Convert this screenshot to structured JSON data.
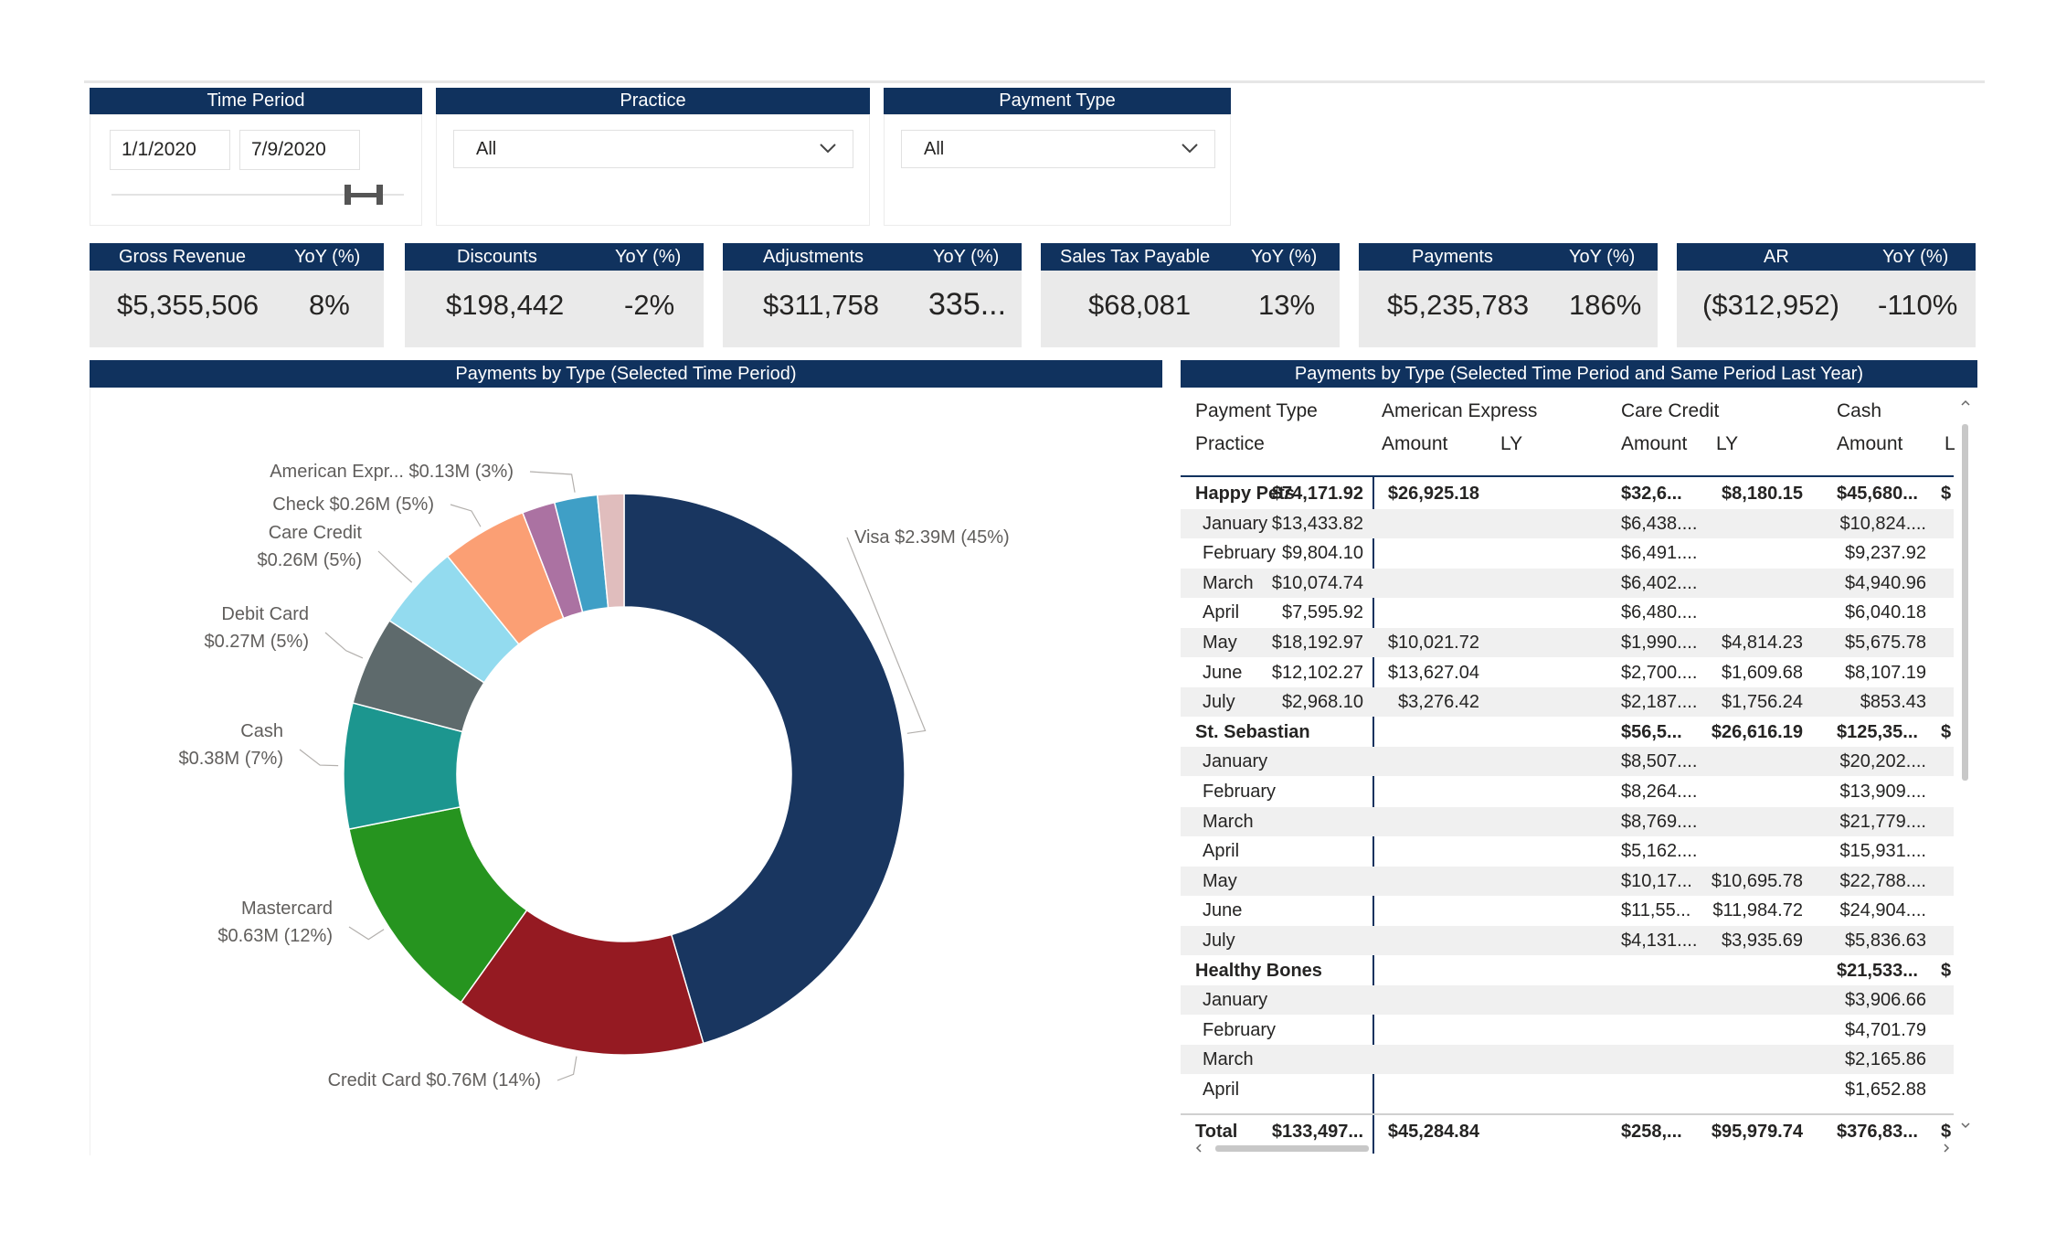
{
  "filters": {
    "time_period": {
      "title": "Time Period",
      "start": "1/1/2020",
      "end": "7/9/2020"
    },
    "practice": {
      "title": "Practice",
      "selected": "All"
    },
    "payment_type": {
      "title": "Payment Type",
      "selected": "All"
    }
  },
  "kpis": [
    {
      "label": "Gross Revenue",
      "yoy_label": "YoY (%)",
      "value": "$5,355,506",
      "yoy": "8%"
    },
    {
      "label": "Discounts",
      "yoy_label": "YoY (%)",
      "value": "$198,442",
      "yoy": "-2%"
    },
    {
      "label": "Adjustments",
      "yoy_label": "YoY (%)",
      "value": "$311,758",
      "yoy": "335..."
    },
    {
      "label": "Sales Tax Payable",
      "yoy_label": "YoY (%)",
      "value": "$68,081",
      "yoy": "13%"
    },
    {
      "label": "Payments",
      "yoy_label": "YoY (%)",
      "value": "$5,235,783",
      "yoy": "186%"
    },
    {
      "label": "AR",
      "yoy_label": "YoY (%)",
      "value": "($312,952)",
      "yoy": "-110%"
    }
  ],
  "chart_data": {
    "type": "pie",
    "title": "Payments by Type (Selected Time Period)",
    "donut": true,
    "slices": [
      {
        "name": "Visa",
        "value": 2.39,
        "label": "Visa $2.39M (45%)",
        "color": "#193660"
      },
      {
        "name": "Credit Card",
        "value": 0.76,
        "label": "Credit Card $0.76M (14%)",
        "color": "#951a22"
      },
      {
        "name": "Mastercard",
        "value": 0.63,
        "label_lines": [
          "Mastercard",
          "$0.63M (12%)"
        ],
        "color": "#26941f"
      },
      {
        "name": "Cash",
        "value": 0.38,
        "label_lines": [
          "Cash",
          "$0.38M (7%)"
        ],
        "color": "#1c968f"
      },
      {
        "name": "Debit Card",
        "value": 0.27,
        "label_lines": [
          "Debit Card",
          "$0.27M (5%)"
        ],
        "color": "#5e6a6c"
      },
      {
        "name": "Care Credit",
        "value": 0.26,
        "label_lines": [
          "Care Credit",
          "$0.26M (5%)"
        ],
        "color": "#93dbef"
      },
      {
        "name": "Check",
        "value": 0.26,
        "label": "Check $0.26M (5%)",
        "color": "#fb9f74"
      },
      {
        "name": "Other 1",
        "value": 0.1,
        "color": "#ab72a2"
      },
      {
        "name": "American Express",
        "value": 0.13,
        "label": "American Expr... $0.13M (3%)",
        "color": "#3f9fc6"
      },
      {
        "name": "Other 2",
        "value": 0.08,
        "color": "#e0bdbd"
      }
    ]
  },
  "table": {
    "title": "Payments by Type (Selected Time Period and Same Period Last Year)",
    "header1": [
      "Payment Type",
      "American Express",
      "Care Credit",
      "Cash"
    ],
    "header2": [
      "Practice",
      "Amount",
      "LY",
      "Amount",
      "LY",
      "Amount",
      "L"
    ],
    "rows": [
      {
        "label": "Happy Pets",
        "group": true,
        "cells": [
          "$74,171.92",
          "$26,925.18",
          "$32,6...",
          "$8,180.15",
          "$45,680...",
          "$"
        ]
      },
      {
        "label": "January",
        "cells": [
          "$13,433.82",
          "",
          "$6,438....",
          "",
          "$10,824....",
          ""
        ]
      },
      {
        "label": "February",
        "cells": [
          "$9,804.10",
          "",
          "$6,491....",
          "",
          "$9,237.92",
          ""
        ]
      },
      {
        "label": "March",
        "cells": [
          "$10,074.74",
          "",
          "$6,402....",
          "",
          "$4,940.96",
          ""
        ]
      },
      {
        "label": "April",
        "cells": [
          "$7,595.92",
          "",
          "$6,480....",
          "",
          "$6,040.18",
          ""
        ]
      },
      {
        "label": "May",
        "cells": [
          "$18,192.97",
          "$10,021.72",
          "$1,990....",
          "$4,814.23",
          "$5,675.78",
          ""
        ]
      },
      {
        "label": "June",
        "cells": [
          "$12,102.27",
          "$13,627.04",
          "$2,700....",
          "$1,609.68",
          "$8,107.19",
          ""
        ]
      },
      {
        "label": "July",
        "cells": [
          "$2,968.10",
          "$3,276.42",
          "$2,187....",
          "$1,756.24",
          "$853.43",
          ""
        ]
      },
      {
        "label": "St. Sebastian",
        "group": true,
        "cells": [
          "",
          "",
          "$56,5...",
          "$26,616.19",
          "$125,35...",
          "$"
        ]
      },
      {
        "label": "January",
        "cells": [
          "",
          "",
          "$8,507....",
          "",
          "$20,202....",
          ""
        ]
      },
      {
        "label": "February",
        "cells": [
          "",
          "",
          "$8,264....",
          "",
          "$13,909....",
          ""
        ]
      },
      {
        "label": "March",
        "cells": [
          "",
          "",
          "$8,769....",
          "",
          "$21,779....",
          ""
        ]
      },
      {
        "label": "April",
        "cells": [
          "",
          "",
          "$5,162....",
          "",
          "$15,931....",
          ""
        ]
      },
      {
        "label": "May",
        "cells": [
          "",
          "",
          "$10,17...",
          "$10,695.78",
          "$22,788....",
          ""
        ]
      },
      {
        "label": "June",
        "cells": [
          "",
          "",
          "$11,55...",
          "$11,984.72",
          "$24,904....",
          ""
        ]
      },
      {
        "label": "July",
        "cells": [
          "",
          "",
          "$4,131....",
          "$3,935.69",
          "$5,836.63",
          ""
        ]
      },
      {
        "label": "Healthy Bones",
        "group": true,
        "cells": [
          "",
          "",
          "",
          "",
          "$21,533...",
          "$"
        ]
      },
      {
        "label": "January",
        "cells": [
          "",
          "",
          "",
          "",
          "$3,906.66",
          ""
        ]
      },
      {
        "label": "February",
        "cells": [
          "",
          "",
          "",
          "",
          "$4,701.79",
          ""
        ]
      },
      {
        "label": "March",
        "cells": [
          "",
          "",
          "",
          "",
          "$2,165.86",
          ""
        ]
      },
      {
        "label": "April",
        "cells": [
          "",
          "",
          "",
          "",
          "$1,652.88",
          ""
        ]
      }
    ],
    "total": {
      "label": "Total",
      "cells": [
        "$133,497...",
        "$45,284.84",
        "$258,...",
        "$95,979.74",
        "$376,83...",
        "$"
      ]
    }
  }
}
